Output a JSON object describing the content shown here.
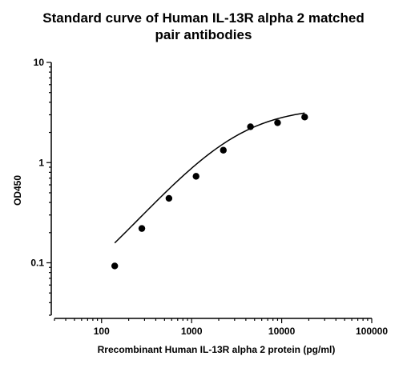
{
  "chart_data": {
    "type": "scatter",
    "title_lines": [
      "Standard curve of Human IL-13R alpha 2 matched",
      "pair antibodies"
    ],
    "xlabel": "Rrecombinant Human IL-13R alpha 2 protein (pg/ml)",
    "ylabel": "OD450",
    "x_scale": "log",
    "y_scale": "log",
    "xlim": [
      30,
      100000
    ],
    "ylim": [
      0.03,
      10
    ],
    "x_ticks": [
      100,
      1000,
      10000,
      100000
    ],
    "x_tick_labels": [
      "100",
      "1000",
      "10000",
      "100000"
    ],
    "y_ticks": [
      0.1,
      1,
      10
    ],
    "y_tick_labels": [
      "0.1",
      "1",
      "10"
    ],
    "grid": false,
    "series": [
      {
        "points": [
          {
            "x": 140,
            "y": 0.093
          },
          {
            "x": 280,
            "y": 0.22
          },
          {
            "x": 560,
            "y": 0.44
          },
          {
            "x": 1120,
            "y": 0.73
          },
          {
            "x": 2250,
            "y": 1.33
          },
          {
            "x": 4500,
            "y": 2.28
          },
          {
            "x": 9000,
            "y": 2.5
          },
          {
            "x": 18000,
            "y": 2.85
          }
        ],
        "fit_curve": true
      }
    ]
  }
}
